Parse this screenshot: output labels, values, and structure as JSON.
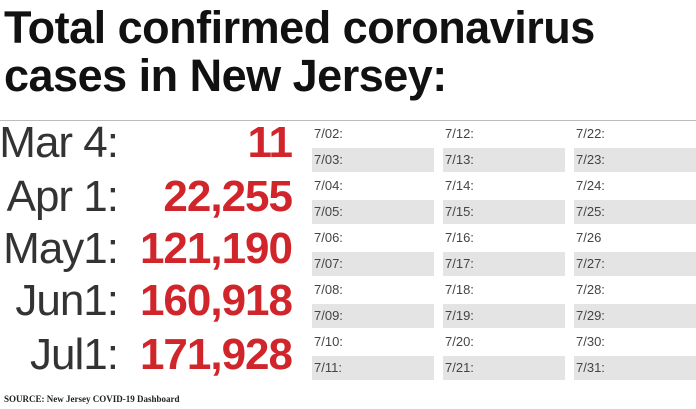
{
  "header": {
    "title_lines": [
      "Total confirmed coronavirus",
      "cases in New Jersey:"
    ]
  },
  "milestones": [
    {
      "label": "Mar 4:",
      "value": "11"
    },
    {
      "label": "Apr 1:",
      "value": "22,255"
    },
    {
      "label": "May1:",
      "value": "121,190"
    },
    {
      "label": "Jun1:",
      "value": "160,918"
    },
    {
      "label": "Jul1:",
      "value": "171,928"
    }
  ],
  "calendar": {
    "columns": [
      [
        "7/02:",
        "7/03:",
        "7/04:",
        "7/05:",
        "7/06:",
        "7/07:",
        "7/08:",
        "7/09:",
        "7/10:",
        "7/11:"
      ],
      [
        "7/12:",
        "7/13:",
        "7/14:",
        "7/15:",
        "7/16:",
        "7/17:",
        "7/18:",
        "7/19:",
        "7/20:",
        "7/21:"
      ],
      [
        "7/22:",
        "7/23:",
        "7/24:",
        "7/25:",
        "7/26",
        "7/27:",
        "7/28:",
        "7/29:",
        "7/30:",
        "7/31:"
      ]
    ]
  },
  "source": "SOURCE: New Jersey COVID-19 Dashboard"
}
